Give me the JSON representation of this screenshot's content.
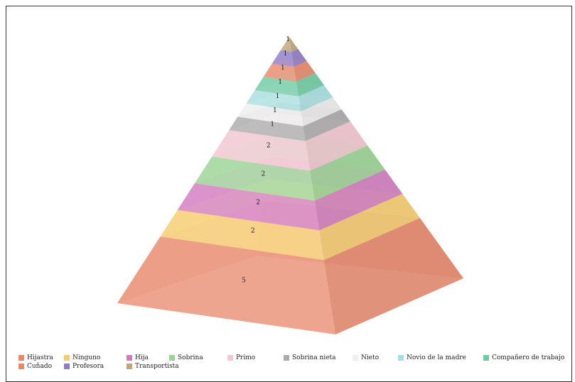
{
  "chart_data": {
    "type": "pyramid",
    "title": "",
    "series": [
      {
        "name": "Hijastra",
        "value": 5,
        "color": "#e8876a"
      },
      {
        "name": "Ninguno",
        "value": 2,
        "color": "#f6cd6e"
      },
      {
        "name": "Hija",
        "value": 2,
        "color": "#d27cc0"
      },
      {
        "name": "Sobrina",
        "value": 2,
        "color": "#9bd494"
      },
      {
        "name": "Primo",
        "value": 2,
        "color": "#f2c7cf"
      },
      {
        "name": "Sobrina nieta",
        "value": 1,
        "color": "#aaaaaa"
      },
      {
        "name": "Nieto",
        "value": 1,
        "color": "#eeeeee"
      },
      {
        "name": "Novio de la madre",
        "value": 1,
        "color": "#a7dee0"
      },
      {
        "name": "Compañero de trabajo",
        "value": 1,
        "color": "#6ecaa0"
      },
      {
        "name": "Cuñado",
        "value": 1,
        "color": "#e8876a"
      },
      {
        "name": "Profesora",
        "value": 1,
        "color": "#8f7cc4"
      },
      {
        "name": "Transportista",
        "value": 1,
        "color": "#c0a57a"
      }
    ],
    "legend_position": "bottom"
  }
}
